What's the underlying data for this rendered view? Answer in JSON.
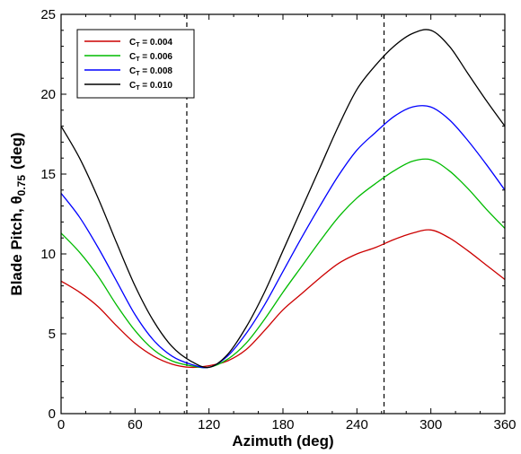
{
  "chart_data": {
    "type": "line",
    "title": "",
    "xlabel": "Azimuth (deg)",
    "ylabel_main": "Blade Pitch, θ",
    "ylabel_sub": "0.75",
    "ylabel_unit": "(deg)",
    "xlim": [
      0,
      360
    ],
    "ylim": [
      0,
      25
    ],
    "xticks": [
      0,
      60,
      120,
      180,
      240,
      300,
      360
    ],
    "yticks": [
      0,
      5,
      10,
      15,
      20,
      25
    ],
    "grid": false,
    "legend_position": "top-left",
    "reference_lines_x": [
      102,
      262
    ],
    "x": [
      0,
      15,
      30,
      45,
      60,
      75,
      90,
      105,
      120,
      135,
      150,
      165,
      180,
      195,
      210,
      225,
      240,
      255,
      270,
      285,
      300,
      315,
      330,
      345,
      360
    ],
    "series": [
      {
        "name": "C_T = 0.004",
        "name_main": "C",
        "name_sub": "T",
        "name_value": " = 0.004",
        "color": "#cc0000",
        "values": [
          8.3,
          7.6,
          6.7,
          5.5,
          4.4,
          3.6,
          3.1,
          2.9,
          3.0,
          3.3,
          4.0,
          5.2,
          6.5,
          7.5,
          8.5,
          9.4,
          10.0,
          10.4,
          10.9,
          11.3,
          11.5,
          11.0,
          10.2,
          9.3,
          8.4
        ]
      },
      {
        "name": "C_T = 0.006",
        "name_main": "C",
        "name_sub": "T",
        "name_value": " = 0.006",
        "color": "#00bb00",
        "values": [
          11.3,
          10.1,
          8.6,
          6.8,
          5.2,
          4.0,
          3.3,
          3.0,
          2.9,
          3.4,
          4.4,
          5.9,
          7.6,
          9.2,
          10.8,
          12.3,
          13.5,
          14.4,
          15.2,
          15.8,
          15.9,
          15.2,
          14.1,
          12.8,
          11.6
        ]
      },
      {
        "name": "C_T = 0.008",
        "name_main": "C",
        "name_sub": "T",
        "name_value": " = 0.008",
        "color": "#0000ff",
        "values": [
          13.8,
          12.3,
          10.4,
          8.3,
          6.2,
          4.6,
          3.6,
          3.1,
          2.9,
          3.6,
          5.0,
          6.8,
          8.9,
          11.0,
          13.0,
          14.9,
          16.5,
          17.6,
          18.6,
          19.2,
          19.2,
          18.4,
          17.1,
          15.6,
          14.0
        ]
      },
      {
        "name": "C_T = 0.010",
        "name_main": "C",
        "name_sub": "T",
        "name_value": " = 0.010",
        "color": "#000000",
        "values": [
          18.0,
          16.0,
          13.5,
          10.7,
          8.0,
          5.8,
          4.2,
          3.3,
          2.9,
          3.7,
          5.4,
          7.6,
          10.2,
          12.8,
          15.4,
          18.0,
          20.3,
          21.8,
          23.0,
          23.8,
          24.0,
          23.0,
          21.3,
          19.6,
          18.0
        ]
      }
    ]
  }
}
